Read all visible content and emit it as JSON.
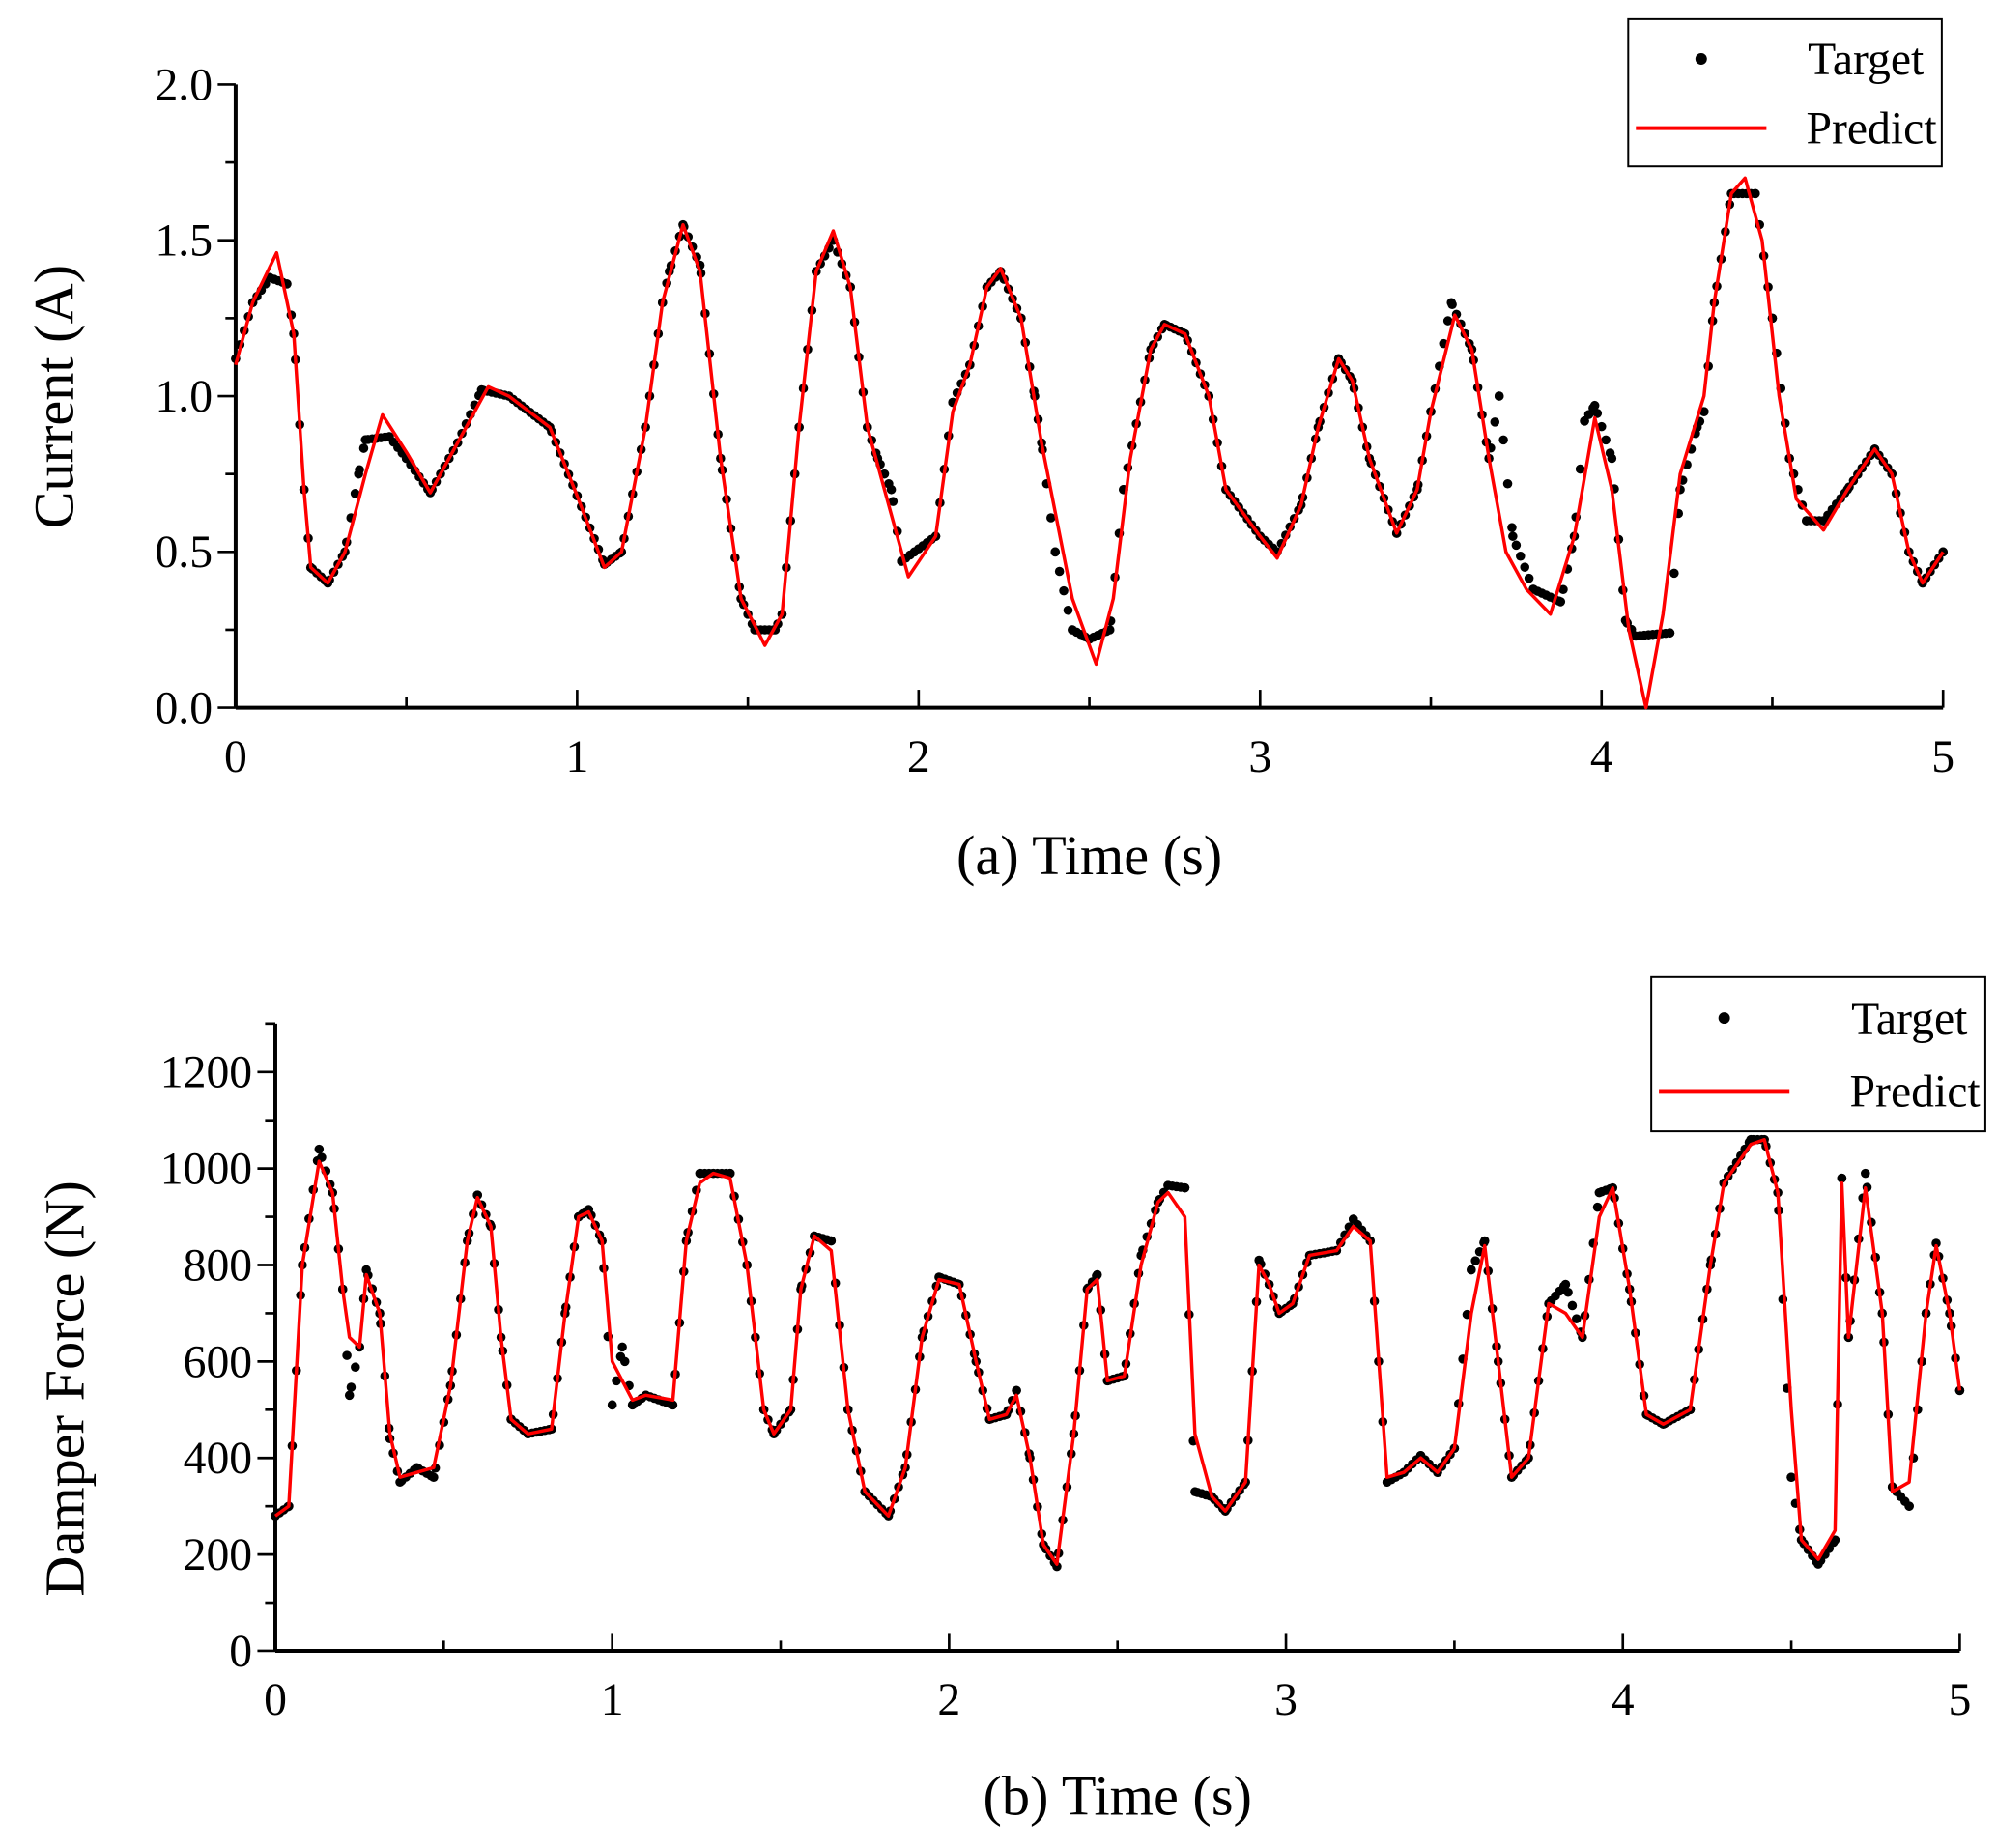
{
  "chart_data": [
    {
      "type": "line",
      "title": "",
      "xlabel": "(a) Time (s)",
      "ylabel": "Current (A)",
      "xlim": [
        0,
        5
      ],
      "ylim": [
        0,
        2.0
      ],
      "xticks": [
        "0",
        "1",
        "2",
        "3",
        "4",
        "5"
      ],
      "yticks": [
        "0.0",
        "0.5",
        "1.0",
        "1.5",
        "2.0"
      ],
      "ytick_values": [
        0,
        0.5,
        1.0,
        1.5,
        2.0
      ],
      "xminor": 0.5,
      "yminor": 0.25,
      "grid": false,
      "legend": {
        "placement": "top-right",
        "entries": [
          "Target",
          "Predict"
        ]
      },
      "series": [
        {
          "name": "Target",
          "style": "dots",
          "color": "#000000",
          "x": [
            0,
            0.05,
            0.1,
            0.15,
            0.17,
            0.2,
            0.22,
            0.27,
            0.32,
            0.36,
            0.38,
            0.45,
            0.5,
            0.57,
            0.65,
            0.72,
            0.8,
            0.92,
            1.0,
            1.08,
            1.13,
            1.2,
            1.25,
            1.27,
            1.31,
            1.36,
            1.42,
            1.48,
            1.52,
            1.58,
            1.6,
            1.65,
            1.7,
            1.75,
            1.8,
            1.85,
            1.88,
            1.92,
            1.95,
            2.05,
            2.1,
            2.15,
            2.2,
            2.24,
            2.3,
            2.34,
            2.36,
            2.4,
            2.45,
            2.5,
            2.56,
            2.6,
            2.68,
            2.72,
            2.78,
            2.85,
            2.9,
            3.0,
            3.05,
            3.12,
            3.17,
            3.23,
            3.27,
            3.32,
            3.4,
            3.46,
            3.5,
            3.56,
            3.62,
            3.67,
            3.7,
            3.74,
            3.8,
            3.88,
            3.92,
            3.95,
            3.98,
            4.03,
            4.07,
            4.1,
            4.2,
            4.23,
            4.28,
            4.3,
            4.33,
            4.38,
            4.45,
            4.5,
            4.55,
            4.6,
            4.65,
            4.72,
            4.8,
            4.85,
            4.9,
            4.94,
            5.0
          ],
          "y": [
            1.12,
            1.3,
            1.38,
            1.36,
            1.2,
            0.7,
            0.45,
            0.4,
            0.5,
            0.75,
            0.86,
            0.87,
            0.8,
            0.69,
            0.85,
            1.02,
            1.0,
            0.9,
            0.68,
            0.46,
            0.5,
            0.9,
            1.3,
            1.4,
            1.55,
            1.42,
            0.8,
            0.35,
            0.25,
            0.25,
            0.3,
            0.9,
            1.4,
            1.5,
            1.35,
            0.9,
            0.8,
            0.7,
            0.47,
            0.55,
            0.98,
            1.1,
            1.35,
            1.4,
            1.25,
            1.0,
            0.85,
            0.5,
            0.25,
            0.22,
            0.25,
            0.7,
            1.15,
            1.23,
            1.2,
            1.0,
            0.7,
            0.55,
            0.5,
            0.65,
            0.9,
            1.12,
            1.05,
            0.8,
            0.56,
            0.7,
            0.95,
            1.3,
            1.15,
            0.8,
            1.0,
            0.55,
            0.38,
            0.34,
            0.55,
            0.92,
            0.97,
            0.8,
            0.28,
            0.23,
            0.24,
            0.7,
            0.9,
            0.95,
            1.3,
            1.65,
            1.65,
            1.25,
            0.8,
            0.6,
            0.6,
            0.7,
            0.83,
            0.75,
            0.5,
            0.4,
            0.5
          ]
        },
        {
          "name": "Predict",
          "style": "line",
          "color": "#ff0000",
          "x": [
            0,
            0.05,
            0.12,
            0.17,
            0.2,
            0.22,
            0.27,
            0.32,
            0.38,
            0.43,
            0.5,
            0.57,
            0.65,
            0.74,
            0.8,
            0.92,
            1.0,
            1.08,
            1.13,
            1.2,
            1.25,
            1.31,
            1.36,
            1.42,
            1.48,
            1.55,
            1.6,
            1.65,
            1.7,
            1.75,
            1.8,
            1.85,
            1.9,
            1.97,
            2.05,
            2.1,
            2.15,
            2.2,
            2.24,
            2.3,
            2.36,
            2.45,
            2.52,
            2.57,
            2.62,
            2.68,
            2.72,
            2.78,
            2.85,
            2.9,
            3.0,
            3.05,
            3.12,
            3.17,
            3.23,
            3.27,
            3.32,
            3.4,
            3.46,
            3.5,
            3.57,
            3.62,
            3.67,
            3.72,
            3.78,
            3.85,
            3.92,
            3.98,
            4.03,
            4.08,
            4.13,
            4.18,
            4.23,
            4.3,
            4.33,
            4.38,
            4.42,
            4.47,
            4.52,
            4.57,
            4.65,
            4.72,
            4.8,
            4.85,
            4.9,
            4.94,
            5.0
          ],
          "y": [
            1.1,
            1.3,
            1.46,
            1.2,
            0.7,
            0.45,
            0.4,
            0.5,
            0.75,
            0.94,
            0.82,
            0.69,
            0.85,
            1.03,
            1.0,
            0.9,
            0.68,
            0.45,
            0.5,
            0.9,
            1.3,
            1.55,
            1.4,
            0.8,
            0.35,
            0.2,
            0.3,
            0.9,
            1.4,
            1.53,
            1.35,
            0.9,
            0.7,
            0.42,
            0.55,
            0.95,
            1.1,
            1.35,
            1.41,
            1.25,
            0.85,
            0.35,
            0.14,
            0.35,
            0.8,
            1.15,
            1.23,
            1.2,
            1.0,
            0.7,
            0.55,
            0.48,
            0.65,
            0.9,
            1.12,
            1.05,
            0.8,
            0.56,
            0.7,
            0.95,
            1.26,
            1.15,
            0.8,
            0.5,
            0.38,
            0.3,
            0.55,
            0.93,
            0.7,
            0.25,
            0.0,
            0.3,
            0.75,
            1.0,
            1.3,
            1.65,
            1.7,
            1.5,
            1.0,
            0.67,
            0.57,
            0.7,
            0.83,
            0.75,
            0.5,
            0.4,
            0.5
          ]
        }
      ]
    },
    {
      "type": "line",
      "title": "",
      "xlabel": "(b) Time (s)",
      "ylabel": "Damper Force (N)",
      "xlim": [
        0,
        5
      ],
      "ylim": [
        0,
        1300
      ],
      "xticks": [
        "0",
        "1",
        "2",
        "3",
        "4",
        "5"
      ],
      "yticks": [
        "0",
        "200",
        "400",
        "600",
        "800",
        "1000",
        "1200"
      ],
      "ytick_values": [
        0,
        200,
        400,
        600,
        800,
        1000,
        1200
      ],
      "xminor": 0.5,
      "yminor": 100,
      "grid": false,
      "legend": {
        "placement": "top-right",
        "entries": [
          "Target",
          "Predict"
        ]
      },
      "series": [
        {
          "name": "Target",
          "style": "dots",
          "color": "#000000",
          "x": [
            0,
            0.04,
            0.08,
            0.13,
            0.17,
            0.2,
            0.22,
            0.25,
            0.27,
            0.31,
            0.34,
            0.37,
            0.42,
            0.47,
            0.52,
            0.57,
            0.6,
            0.64,
            0.67,
            0.7,
            0.75,
            0.82,
            0.86,
            0.9,
            0.93,
            0.97,
            1.0,
            1.03,
            1.06,
            1.1,
            1.18,
            1.22,
            1.26,
            1.3,
            1.35,
            1.4,
            1.45,
            1.48,
            1.53,
            1.56,
            1.6,
            1.65,
            1.7,
            1.75,
            1.82,
            1.87,
            1.92,
            1.97,
            2.03,
            2.08,
            2.12,
            2.17,
            2.2,
            2.24,
            2.28,
            2.32,
            2.37,
            2.41,
            2.44,
            2.47,
            2.52,
            2.57,
            2.62,
            2.65,
            2.7,
            2.73,
            2.78,
            2.82,
            2.88,
            2.92,
            2.95,
            2.98,
            3.02,
            3.07,
            3.15,
            3.2,
            3.25,
            3.3,
            3.35,
            3.4,
            3.45,
            3.5,
            3.55,
            3.59,
            3.63,
            3.67,
            3.72,
            3.78,
            3.83,
            3.88,
            3.93,
            3.97,
            4.02,
            4.07,
            4.12,
            4.2,
            4.26,
            4.3,
            4.38,
            4.42,
            4.46,
            4.5,
            4.53,
            4.58,
            4.63,
            4.65,
            4.67,
            4.72,
            4.77,
            4.8,
            4.85,
            4.9,
            4.93,
            4.97,
            5.0
          ],
          "y": [
            280,
            300,
            800,
            1040,
            950,
            750,
            530,
            630,
            790,
            700,
            440,
            350,
            380,
            360,
            550,
            850,
            945,
            880,
            650,
            480,
            450,
            460,
            700,
            900,
            915,
            850,
            510,
            630,
            510,
            530,
            510,
            850,
            990,
            990,
            990,
            800,
            500,
            450,
            500,
            750,
            860,
            850,
            500,
            330,
            280,
            380,
            650,
            775,
            760,
            600,
            480,
            490,
            540,
            400,
            220,
            175,
            450,
            750,
            780,
            560,
            570,
            820,
            930,
            965,
            960,
            330,
            320,
            290,
            350,
            810,
            760,
            700,
            720,
            820,
            830,
            895,
            850,
            350,
            370,
            405,
            370,
            420,
            790,
            850,
            600,
            360,
            400,
            720,
            760,
            650,
            950,
            960,
            750,
            490,
            470,
            500,
            800,
            970,
            1060,
            1060,
            950,
            360,
            230,
            180,
            230,
            980,
            650,
            990,
            700,
            340,
            300,
            700,
            845,
            700,
            540
          ]
        },
        {
          "name": "Predict",
          "style": "line",
          "color": "#ff0000",
          "x": [
            0,
            0.04,
            0.08,
            0.13,
            0.17,
            0.2,
            0.22,
            0.25,
            0.27,
            0.31,
            0.34,
            0.37,
            0.42,
            0.47,
            0.52,
            0.57,
            0.6,
            0.64,
            0.67,
            0.7,
            0.75,
            0.82,
            0.86,
            0.9,
            0.93,
            0.97,
            1.0,
            1.03,
            1.06,
            1.1,
            1.18,
            1.22,
            1.26,
            1.3,
            1.35,
            1.4,
            1.45,
            1.48,
            1.53,
            1.56,
            1.6,
            1.65,
            1.7,
            1.75,
            1.82,
            1.87,
            1.92,
            1.97,
            2.03,
            2.08,
            2.12,
            2.17,
            2.2,
            2.24,
            2.28,
            2.32,
            2.37,
            2.41,
            2.44,
            2.47,
            2.52,
            2.57,
            2.62,
            2.65,
            2.7,
            2.73,
            2.78,
            2.82,
            2.88,
            2.92,
            2.95,
            2.98,
            3.02,
            3.07,
            3.15,
            3.2,
            3.25,
            3.3,
            3.35,
            3.4,
            3.45,
            3.5,
            3.55,
            3.59,
            3.63,
            3.67,
            3.72,
            3.78,
            3.83,
            3.88,
            3.93,
            3.97,
            4.02,
            4.07,
            4.12,
            4.2,
            4.26,
            4.3,
            4.38,
            4.42,
            4.46,
            4.5,
            4.53,
            4.58,
            4.63,
            4.65,
            4.67,
            4.72,
            4.77,
            4.8,
            4.85,
            4.9,
            4.93,
            4.97,
            5.0
          ],
          "y": [
            280,
            300,
            800,
            1015,
            950,
            750,
            650,
            630,
            780,
            700,
            450,
            360,
            370,
            380,
            550,
            850,
            940,
            880,
            650,
            480,
            450,
            460,
            700,
            900,
            910,
            850,
            600,
            560,
            520,
            530,
            520,
            850,
            970,
            990,
            980,
            800,
            500,
            450,
            500,
            750,
            860,
            830,
            500,
            330,
            280,
            380,
            650,
            770,
            760,
            600,
            480,
            490,
            530,
            400,
            220,
            180,
            450,
            750,
            770,
            560,
            570,
            800,
            930,
            950,
            900,
            450,
            320,
            290,
            350,
            800,
            760,
            700,
            720,
            820,
            830,
            880,
            850,
            360,
            370,
            400,
            370,
            420,
            700,
            840,
            600,
            360,
            400,
            720,
            700,
            650,
            900,
            960,
            750,
            490,
            470,
            500,
            800,
            970,
            1050,
            1060,
            950,
            500,
            230,
            190,
            250,
            970,
            650,
            960,
            700,
            330,
            350,
            700,
            840,
            700,
            540
          ]
        }
      ]
    }
  ]
}
